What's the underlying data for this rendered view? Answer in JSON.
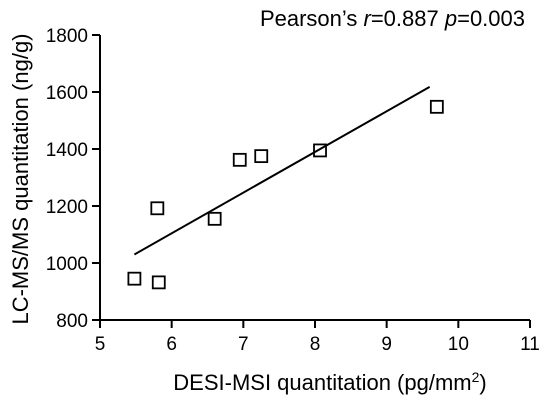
{
  "chart_data": {
    "type": "scatter",
    "annotation": {
      "prefix": "Pearson’s ",
      "r_symbol": "r",
      "r_value": "=0.887 ",
      "p_symbol": "p",
      "p_value": "=0.003"
    },
    "xlabel_main": "DESI-MSI quantitation (pg/mm",
    "xlabel_sup": "2",
    "xlabel_end": ")",
    "ylabel": "LC-MS/MS quantitation (ng/g)",
    "xlim": [
      5,
      11
    ],
    "ylim": [
      800,
      1800
    ],
    "xticks": [
      5,
      6,
      7,
      8,
      9,
      10,
      11
    ],
    "yticks": [
      800,
      1000,
      1200,
      1400,
      1600,
      1800
    ],
    "marker": "open-square",
    "grid": false,
    "points": [
      {
        "x": 5.48,
        "y": 945
      },
      {
        "x": 5.8,
        "y": 1192
      },
      {
        "x": 5.82,
        "y": 932
      },
      {
        "x": 6.6,
        "y": 1155
      },
      {
        "x": 6.95,
        "y": 1362
      },
      {
        "x": 7.25,
        "y": 1375
      },
      {
        "x": 8.07,
        "y": 1395
      },
      {
        "x": 9.7,
        "y": 1548
      }
    ],
    "fit_line": {
      "x": [
        5.48,
        9.6
      ],
      "y": [
        1030,
        1618
      ]
    },
    "colors": {
      "marker": "#000000",
      "line": "#000000",
      "axis": "#000000"
    }
  }
}
